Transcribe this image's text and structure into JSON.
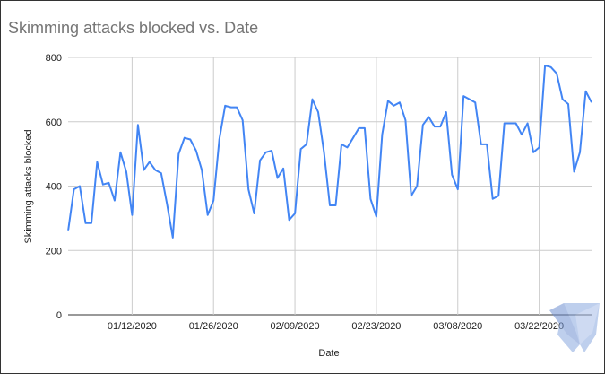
{
  "chart_data": {
    "type": "line",
    "title": "Skimming attacks blocked vs. Date",
    "xlabel": "Date",
    "ylabel": "Skimming attacks blocked",
    "ylim": [
      0,
      800
    ],
    "yticks": [
      "0",
      "200",
      "400",
      "600",
      "800"
    ],
    "xlim": [
      "2020-01-01",
      "2020-03-31"
    ],
    "xticks": [
      {
        "date": "2020-01-12",
        "label": "01/12/2020"
      },
      {
        "date": "2020-01-26",
        "label": "01/26/2020"
      },
      {
        "date": "2020-02-09",
        "label": "02/09/2020"
      },
      {
        "date": "2020-02-23",
        "label": "02/23/2020"
      },
      {
        "date": "2020-03-08",
        "label": "03/08/2020"
      },
      {
        "date": "2020-03-22",
        "label": "03/22/2020"
      }
    ],
    "grid": true,
    "legend": "none",
    "color": "#4285f4",
    "x_start": "2020-01-01",
    "x_step": "1 day",
    "values": [
      260,
      390,
      400,
      285,
      285,
      475,
      405,
      410,
      355,
      505,
      445,
      310,
      590,
      450,
      475,
      450,
      440,
      345,
      240,
      500,
      550,
      545,
      510,
      450,
      310,
      355,
      545,
      650,
      645,
      645,
      605,
      390,
      315,
      480,
      505,
      510,
      425,
      455,
      295,
      315,
      515,
      530,
      670,
      630,
      505,
      340,
      340,
      530,
      520,
      550,
      580,
      580,
      360,
      305,
      560,
      665,
      650,
      660,
      605,
      370,
      400,
      590,
      615,
      585,
      585,
      630,
      435,
      390,
      680,
      670,
      660,
      530,
      530,
      360,
      370,
      595,
      595,
      595,
      560,
      595,
      505,
      520,
      775,
      770,
      750,
      670,
      655,
      445,
      505,
      695,
      660
    ]
  },
  "watermark": "malwarebytes-logo"
}
